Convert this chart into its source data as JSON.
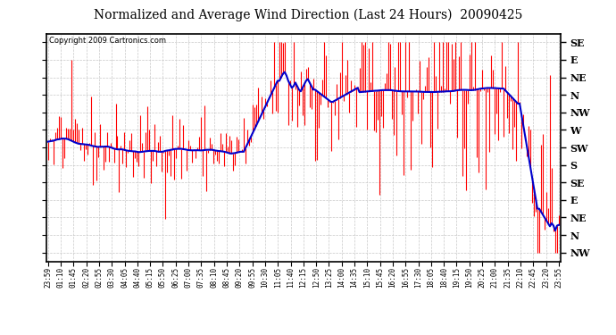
{
  "title": "Normalized and Average Wind Direction (Last 24 Hours)  20090425",
  "copyright": "Copyright 2009 Cartronics.com",
  "background_color": "#ffffff",
  "plot_bg_color": "#ffffff",
  "grid_color": "#c8c8c8",
  "bar_color": "#ff0000",
  "line_color": "#0000cc",
  "ytick_labels": [
    "SE",
    "E",
    "NE",
    "N",
    "NW",
    "W",
    "SW",
    "S",
    "SE",
    "E",
    "NE",
    "N",
    "NW"
  ],
  "ytick_values": [
    13,
    12,
    11,
    10,
    9,
    8,
    7,
    6,
    5,
    4,
    3,
    2,
    1
  ],
  "ylim": [
    0.5,
    13.5
  ],
  "time_labels": [
    "23:59",
    "01:10",
    "01:45",
    "02:20",
    "02:55",
    "03:30",
    "04:05",
    "04:40",
    "05:15",
    "05:50",
    "06:25",
    "07:00",
    "07:35",
    "08:10",
    "08:45",
    "09:20",
    "09:55",
    "10:30",
    "11:05",
    "11:40",
    "12:15",
    "12:50",
    "13:25",
    "14:00",
    "14:35",
    "15:10",
    "15:45",
    "16:20",
    "16:55",
    "17:30",
    "18:05",
    "18:40",
    "19:15",
    "19:50",
    "20:25",
    "21:00",
    "21:35",
    "22:10",
    "22:45",
    "23:20",
    "23:55"
  ],
  "n_points": 288,
  "seed": 42,
  "figsize": [
    6.9,
    3.75
  ],
  "dpi": 100
}
